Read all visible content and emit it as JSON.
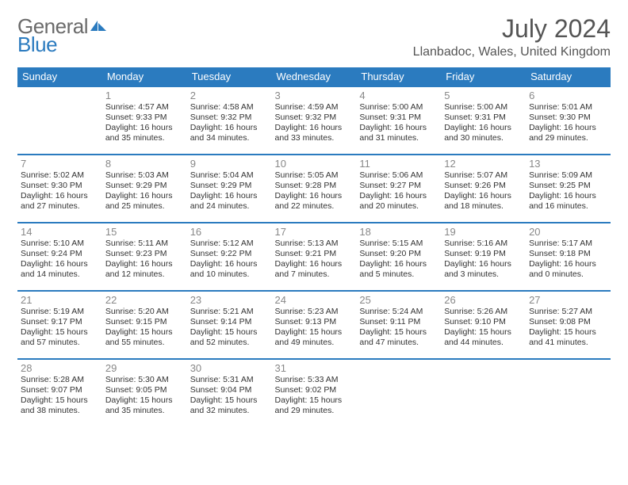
{
  "logo": {
    "word1": "General",
    "word2": "Blue",
    "icon_color": "#2b7bbf"
  },
  "title": "July 2024",
  "location": "Llanbadoc, Wales, United Kingdom",
  "colors": {
    "accent": "#2b7bbf",
    "text": "#333333",
    "muted": "#888888",
    "bg": "#ffffff"
  },
  "dayNames": [
    "Sunday",
    "Monday",
    "Tuesday",
    "Wednesday",
    "Thursday",
    "Friday",
    "Saturday"
  ],
  "weeks": [
    [
      {},
      {
        "n": "1",
        "sr": "Sunrise: 4:57 AM",
        "ss": "Sunset: 9:33 PM",
        "d1": "Daylight: 16 hours",
        "d2": "and 35 minutes."
      },
      {
        "n": "2",
        "sr": "Sunrise: 4:58 AM",
        "ss": "Sunset: 9:32 PM",
        "d1": "Daylight: 16 hours",
        "d2": "and 34 minutes."
      },
      {
        "n": "3",
        "sr": "Sunrise: 4:59 AM",
        "ss": "Sunset: 9:32 PM",
        "d1": "Daylight: 16 hours",
        "d2": "and 33 minutes."
      },
      {
        "n": "4",
        "sr": "Sunrise: 5:00 AM",
        "ss": "Sunset: 9:31 PM",
        "d1": "Daylight: 16 hours",
        "d2": "and 31 minutes."
      },
      {
        "n": "5",
        "sr": "Sunrise: 5:00 AM",
        "ss": "Sunset: 9:31 PM",
        "d1": "Daylight: 16 hours",
        "d2": "and 30 minutes."
      },
      {
        "n": "6",
        "sr": "Sunrise: 5:01 AM",
        "ss": "Sunset: 9:30 PM",
        "d1": "Daylight: 16 hours",
        "d2": "and 29 minutes."
      }
    ],
    [
      {
        "n": "7",
        "sr": "Sunrise: 5:02 AM",
        "ss": "Sunset: 9:30 PM",
        "d1": "Daylight: 16 hours",
        "d2": "and 27 minutes."
      },
      {
        "n": "8",
        "sr": "Sunrise: 5:03 AM",
        "ss": "Sunset: 9:29 PM",
        "d1": "Daylight: 16 hours",
        "d2": "and 25 minutes."
      },
      {
        "n": "9",
        "sr": "Sunrise: 5:04 AM",
        "ss": "Sunset: 9:29 PM",
        "d1": "Daylight: 16 hours",
        "d2": "and 24 minutes."
      },
      {
        "n": "10",
        "sr": "Sunrise: 5:05 AM",
        "ss": "Sunset: 9:28 PM",
        "d1": "Daylight: 16 hours",
        "d2": "and 22 minutes."
      },
      {
        "n": "11",
        "sr": "Sunrise: 5:06 AM",
        "ss": "Sunset: 9:27 PM",
        "d1": "Daylight: 16 hours",
        "d2": "and 20 minutes."
      },
      {
        "n": "12",
        "sr": "Sunrise: 5:07 AM",
        "ss": "Sunset: 9:26 PM",
        "d1": "Daylight: 16 hours",
        "d2": "and 18 minutes."
      },
      {
        "n": "13",
        "sr": "Sunrise: 5:09 AM",
        "ss": "Sunset: 9:25 PM",
        "d1": "Daylight: 16 hours",
        "d2": "and 16 minutes."
      }
    ],
    [
      {
        "n": "14",
        "sr": "Sunrise: 5:10 AM",
        "ss": "Sunset: 9:24 PM",
        "d1": "Daylight: 16 hours",
        "d2": "and 14 minutes."
      },
      {
        "n": "15",
        "sr": "Sunrise: 5:11 AM",
        "ss": "Sunset: 9:23 PM",
        "d1": "Daylight: 16 hours",
        "d2": "and 12 minutes."
      },
      {
        "n": "16",
        "sr": "Sunrise: 5:12 AM",
        "ss": "Sunset: 9:22 PM",
        "d1": "Daylight: 16 hours",
        "d2": "and 10 minutes."
      },
      {
        "n": "17",
        "sr": "Sunrise: 5:13 AM",
        "ss": "Sunset: 9:21 PM",
        "d1": "Daylight: 16 hours",
        "d2": "and 7 minutes."
      },
      {
        "n": "18",
        "sr": "Sunrise: 5:15 AM",
        "ss": "Sunset: 9:20 PM",
        "d1": "Daylight: 16 hours",
        "d2": "and 5 minutes."
      },
      {
        "n": "19",
        "sr": "Sunrise: 5:16 AM",
        "ss": "Sunset: 9:19 PM",
        "d1": "Daylight: 16 hours",
        "d2": "and 3 minutes."
      },
      {
        "n": "20",
        "sr": "Sunrise: 5:17 AM",
        "ss": "Sunset: 9:18 PM",
        "d1": "Daylight: 16 hours",
        "d2": "and 0 minutes."
      }
    ],
    [
      {
        "n": "21",
        "sr": "Sunrise: 5:19 AM",
        "ss": "Sunset: 9:17 PM",
        "d1": "Daylight: 15 hours",
        "d2": "and 57 minutes."
      },
      {
        "n": "22",
        "sr": "Sunrise: 5:20 AM",
        "ss": "Sunset: 9:15 PM",
        "d1": "Daylight: 15 hours",
        "d2": "and 55 minutes."
      },
      {
        "n": "23",
        "sr": "Sunrise: 5:21 AM",
        "ss": "Sunset: 9:14 PM",
        "d1": "Daylight: 15 hours",
        "d2": "and 52 minutes."
      },
      {
        "n": "24",
        "sr": "Sunrise: 5:23 AM",
        "ss": "Sunset: 9:13 PM",
        "d1": "Daylight: 15 hours",
        "d2": "and 49 minutes."
      },
      {
        "n": "25",
        "sr": "Sunrise: 5:24 AM",
        "ss": "Sunset: 9:11 PM",
        "d1": "Daylight: 15 hours",
        "d2": "and 47 minutes."
      },
      {
        "n": "26",
        "sr": "Sunrise: 5:26 AM",
        "ss": "Sunset: 9:10 PM",
        "d1": "Daylight: 15 hours",
        "d2": "and 44 minutes."
      },
      {
        "n": "27",
        "sr": "Sunrise: 5:27 AM",
        "ss": "Sunset: 9:08 PM",
        "d1": "Daylight: 15 hours",
        "d2": "and 41 minutes."
      }
    ],
    [
      {
        "n": "28",
        "sr": "Sunrise: 5:28 AM",
        "ss": "Sunset: 9:07 PM",
        "d1": "Daylight: 15 hours",
        "d2": "and 38 minutes."
      },
      {
        "n": "29",
        "sr": "Sunrise: 5:30 AM",
        "ss": "Sunset: 9:05 PM",
        "d1": "Daylight: 15 hours",
        "d2": "and 35 minutes."
      },
      {
        "n": "30",
        "sr": "Sunrise: 5:31 AM",
        "ss": "Sunset: 9:04 PM",
        "d1": "Daylight: 15 hours",
        "d2": "and 32 minutes."
      },
      {
        "n": "31",
        "sr": "Sunrise: 5:33 AM",
        "ss": "Sunset: 9:02 PM",
        "d1": "Daylight: 15 hours",
        "d2": "and 29 minutes."
      },
      {},
      {},
      {}
    ]
  ]
}
